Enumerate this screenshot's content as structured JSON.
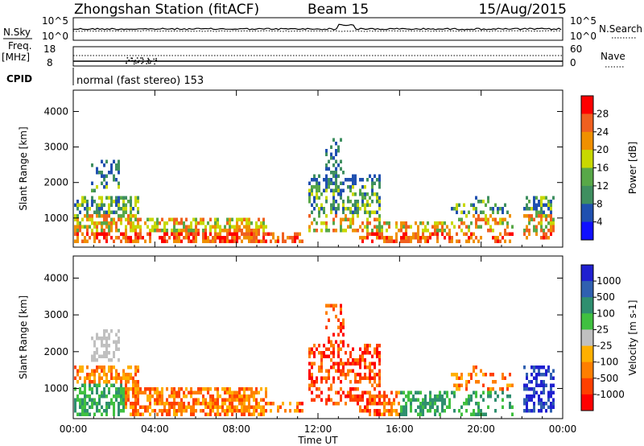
{
  "header": {
    "station": "Zhongshan Station (fitACF)",
    "beam": "Beam 15",
    "date": "15/Aug/2015"
  },
  "top_panels": {
    "nsky_label": "N.Sky",
    "nsearch_label": "N.Search",
    "scale_top": "10^5",
    "scale_bottom": "10^0",
    "freq_label": "Freq.",
    "freq_unit": "[MHz]",
    "freq_ticks": [
      "18",
      "8"
    ],
    "nave_ticks": [
      "60",
      "0"
    ],
    "nave_label": "Nave",
    "cpid_label": "CPID",
    "cpid_text": "normal (fast stereo) 153"
  },
  "colors": {
    "power_scale": [
      "#1010ff",
      "#2050b0",
      "#3f8f60",
      "#58a848",
      "#c8d800",
      "#f09000",
      "#f06020",
      "#ff0000"
    ],
    "velocity_scale": [
      "#ff0000",
      "#ff4000",
      "#ff7f00",
      "#ffb000",
      "#c0c0c0",
      "#40c040",
      "#2f8f6f",
      "#3060b0",
      "#2020d0"
    ]
  },
  "chart_data": [
    {
      "type": "heatmap",
      "title": "Power",
      "ylabel": "Slant Range [km]",
      "xlabel": "",
      "x_ticks": [
        "00:00",
        "04:00",
        "08:00",
        "12:00",
        "16:00",
        "20:00",
        "00:00"
      ],
      "y_ticks": [
        "1000",
        "2000",
        "3000",
        "4000"
      ],
      "xlim_hours": [
        0,
        24
      ],
      "ylim_km": [
        180,
        4600
      ],
      "colorbar_label": "Power [dB]",
      "colorbar_ticks": [
        "28",
        "24",
        "20",
        "16",
        "12",
        "8",
        "4"
      ],
      "colorbar_range": [
        0,
        32
      ]
    },
    {
      "type": "heatmap",
      "title": "Velocity",
      "ylabel": "Slant Range [km]",
      "xlabel": "Time UT",
      "x_ticks": [
        "00:00",
        "04:00",
        "08:00",
        "12:00",
        "16:00",
        "20:00",
        "00:00"
      ],
      "y_ticks": [
        "1000",
        "2000",
        "3000",
        "4000"
      ],
      "xlim_hours": [
        0,
        24
      ],
      "ylim_km": [
        180,
        4600
      ],
      "colorbar_label": "Velocity [m s-1]",
      "colorbar_ticks": [
        "1000",
        "500",
        "100",
        "25",
        "-25",
        "-100",
        "-500",
        "-1000"
      ]
    }
  ]
}
